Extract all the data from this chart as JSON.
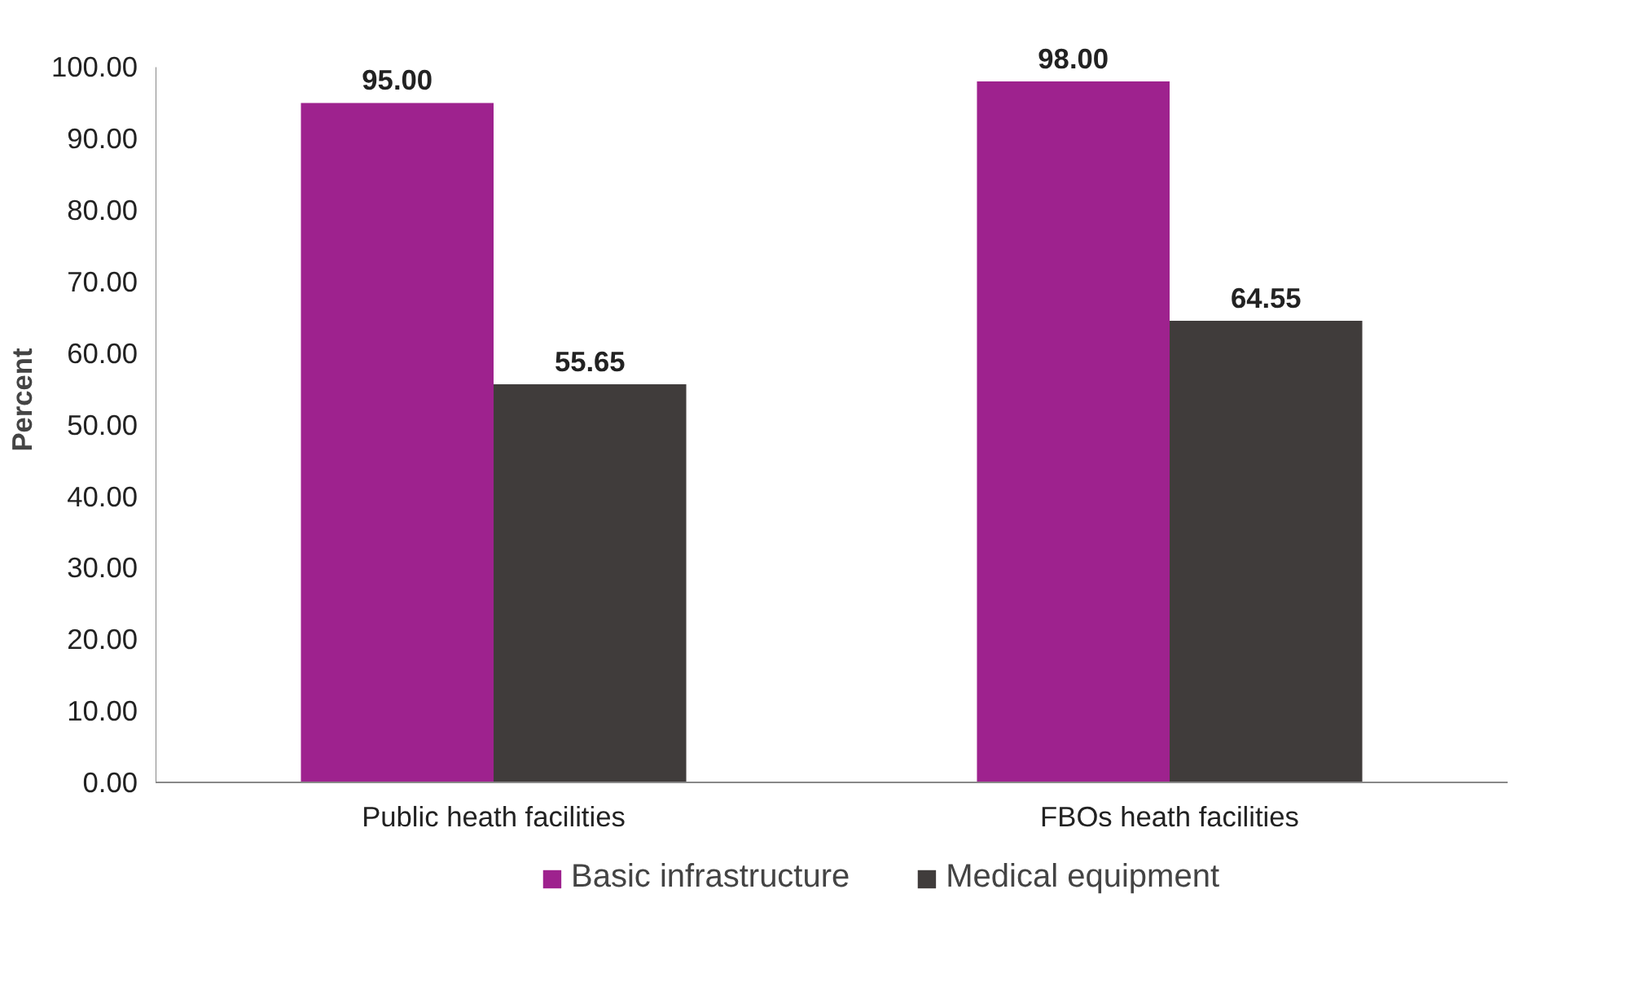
{
  "chart_data": {
    "type": "bar",
    "ylabel": "Percent",
    "categories": [
      "Public heath facilities",
      "FBOs heath facilities"
    ],
    "series": [
      {
        "name": "Basic infrastructure",
        "color": "#9e228e",
        "values": [
          95.0,
          98.0
        ],
        "value_labels": [
          "95.00",
          "98.00"
        ]
      },
      {
        "name": "Medical equipment",
        "color": "#403c3b",
        "values": [
          55.65,
          64.55
        ],
        "value_labels": [
          "55.65",
          "64.55"
        ]
      }
    ],
    "ylim": [
      0,
      100
    ],
    "yticks": [
      {
        "value": 0,
        "label": "0.00"
      },
      {
        "value": 10,
        "label": "10.00"
      },
      {
        "value": 20,
        "label": "20.00"
      },
      {
        "value": 30,
        "label": "30.00"
      },
      {
        "value": 40,
        "label": "40.00"
      },
      {
        "value": 50,
        "label": "50.00"
      },
      {
        "value": 60,
        "label": "60.00"
      },
      {
        "value": 70,
        "label": "70.00"
      },
      {
        "value": 80,
        "label": "80.00"
      },
      {
        "value": 90,
        "label": "90.00"
      },
      {
        "value": 100,
        "label": "100.00"
      }
    ],
    "grid": false,
    "legend": "bottom"
  }
}
